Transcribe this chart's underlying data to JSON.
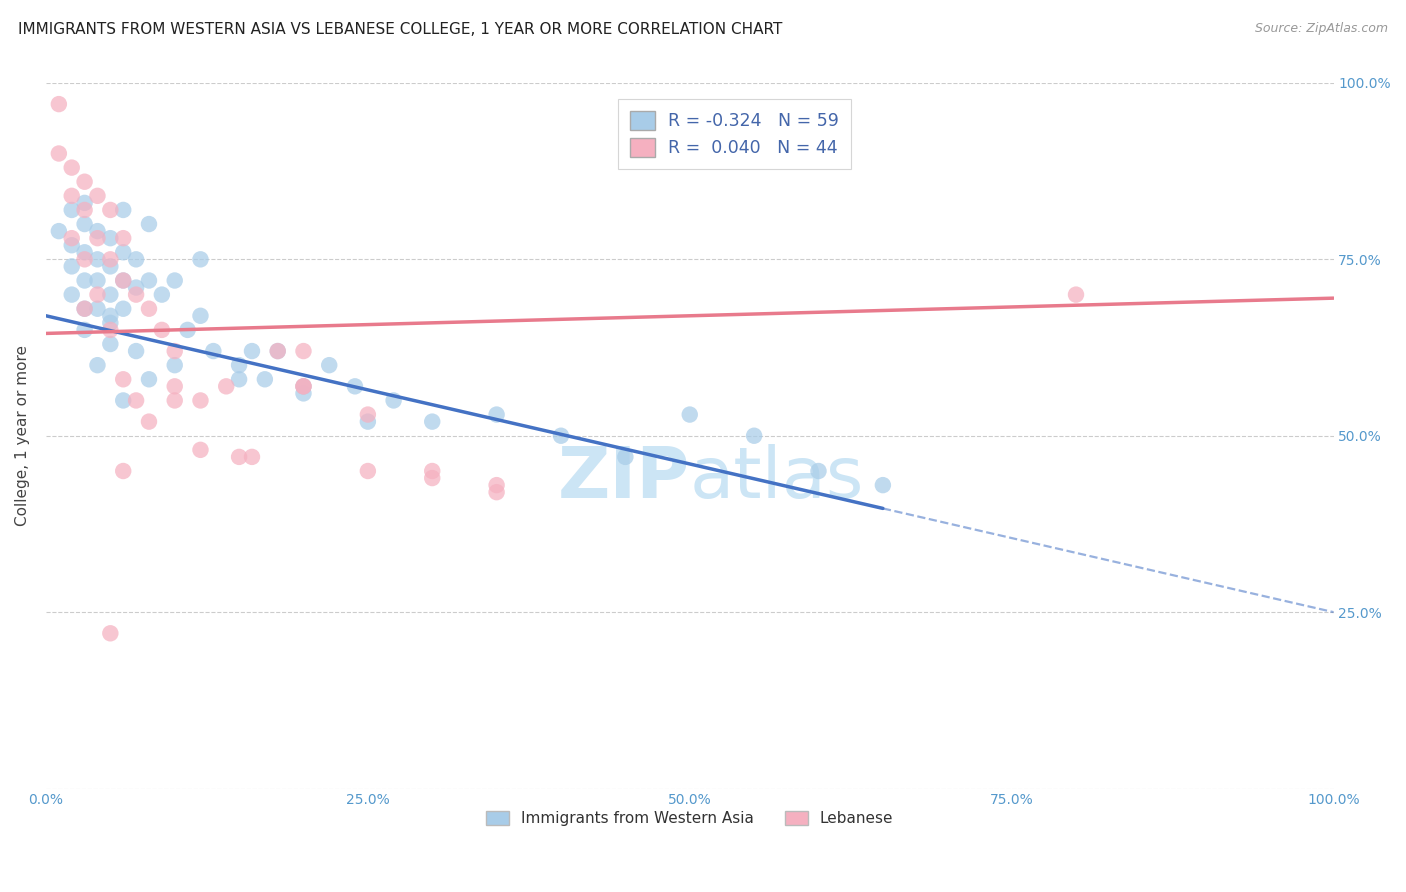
{
  "title": "IMMIGRANTS FROM WESTERN ASIA VS LEBANESE COLLEGE, 1 YEAR OR MORE CORRELATION CHART",
  "source": "Source: ZipAtlas.com",
  "ylabel": "College, 1 year or more",
  "blue_label": "Immigrants from Western Asia",
  "pink_label": "Lebanese",
  "blue_R": -0.324,
  "blue_N": 59,
  "pink_R": 0.04,
  "pink_N": 44,
  "blue_color": "#a8cce8",
  "pink_color": "#f5b0c0",
  "blue_line_color": "#4472c4",
  "pink_line_color": "#e87a8c",
  "background_color": "#ffffff",
  "watermark_color": "#cce5f5",
  "xlim": [
    0,
    100
  ],
  "ylim": [
    0,
    100
  ],
  "blue_intercept": 67.0,
  "blue_slope": -0.42,
  "pink_intercept": 64.5,
  "pink_slope": 0.05,
  "blue_solid_end": 65,
  "blue_dots_x": [
    1,
    2,
    2,
    2,
    3,
    3,
    3,
    3,
    4,
    4,
    4,
    4,
    5,
    5,
    5,
    5,
    5,
    6,
    6,
    6,
    7,
    7,
    8,
    9,
    10,
    11,
    12,
    13,
    15,
    16,
    17,
    18,
    20,
    22,
    24,
    27,
    30,
    35,
    40,
    45,
    50,
    55,
    60,
    65,
    3,
    4,
    5,
    6,
    7,
    8,
    10,
    15,
    20,
    25,
    2,
    3,
    6,
    8,
    12
  ],
  "blue_dots_y": [
    79,
    77,
    74,
    70,
    80,
    76,
    72,
    68,
    79,
    75,
    72,
    68,
    78,
    74,
    70,
    67,
    63,
    76,
    72,
    68,
    75,
    71,
    72,
    70,
    72,
    65,
    67,
    62,
    60,
    62,
    58,
    62,
    57,
    60,
    57,
    55,
    52,
    53,
    50,
    47,
    53,
    50,
    45,
    43,
    65,
    60,
    66,
    55,
    62,
    58,
    60,
    58,
    56,
    52,
    82,
    83,
    82,
    80,
    75
  ],
  "pink_dots_x": [
    1,
    1,
    2,
    2,
    2,
    3,
    3,
    3,
    4,
    4,
    5,
    5,
    6,
    6,
    7,
    8,
    9,
    10,
    12,
    14,
    16,
    18,
    20,
    25,
    30,
    35,
    80,
    3,
    4,
    5,
    6,
    7,
    8,
    10,
    12,
    15,
    20,
    25,
    30,
    35,
    6,
    10,
    20,
    5
  ],
  "pink_dots_y": [
    97,
    90,
    88,
    84,
    78,
    86,
    82,
    75,
    84,
    78,
    82,
    75,
    78,
    72,
    70,
    68,
    65,
    62,
    55,
    57,
    47,
    62,
    57,
    53,
    45,
    43,
    70,
    68,
    70,
    65,
    58,
    55,
    52,
    57,
    48,
    47,
    57,
    45,
    44,
    42,
    45,
    55,
    62,
    22
  ]
}
